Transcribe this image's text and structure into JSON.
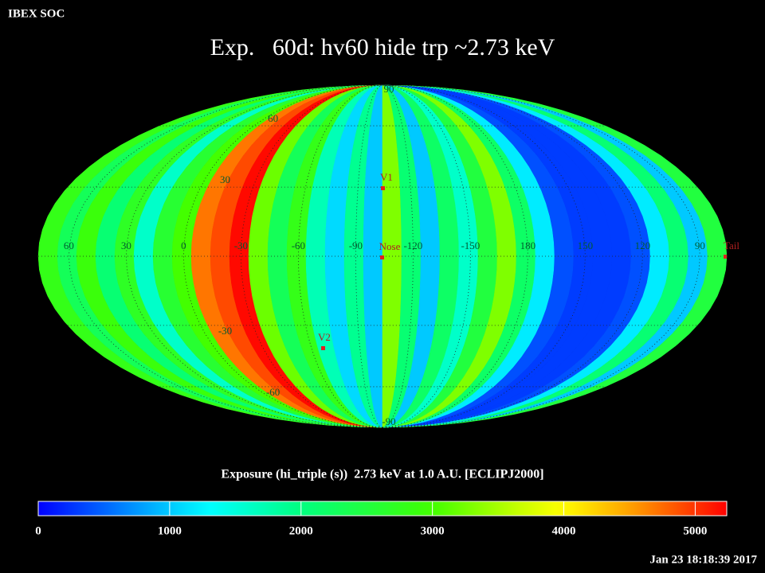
{
  "header": {
    "org": "IBEX SOC",
    "title": "Exp.   60d: hv60 hide trp ~2.73 keV",
    "timestamp": "Jan 23 18:18:39 2017"
  },
  "map": {
    "projection": "mollweide",
    "exposure": [
      2800,
      2300,
      2900,
      2100,
      2700,
      1600,
      2600,
      3000,
      4700,
      4900,
      5200,
      3200,
      2300,
      2800,
      1700,
      1100,
      1900,
      1000,
      3300,
      2100,
      1000,
      2200,
      1600,
      2500,
      3300,
      2200,
      1200,
      400,
      300,
      300,
      300,
      400,
      1200,
      2100,
      1000,
      2500
    ],
    "lat_labels": [
      90,
      60,
      30,
      -30,
      -60,
      -90
    ],
    "lon_labels": [
      60,
      30,
      0,
      -30,
      -60,
      -90,
      -120,
      -150,
      180,
      150,
      120,
      90
    ],
    "markers": [
      {
        "label": "V1"
      },
      {
        "label": "Nose"
      },
      {
        "label": "V2"
      },
      {
        "label": "Tail"
      }
    ]
  },
  "colorbar": {
    "label": "Exposure (hi_triple (s))  2.73 keV at 1.0 A.U. [ECLIPJ2000]",
    "lim": [
      0,
      5240
    ],
    "ticks": [
      0,
      1000,
      2000,
      3000,
      4000,
      5000
    ]
  }
}
